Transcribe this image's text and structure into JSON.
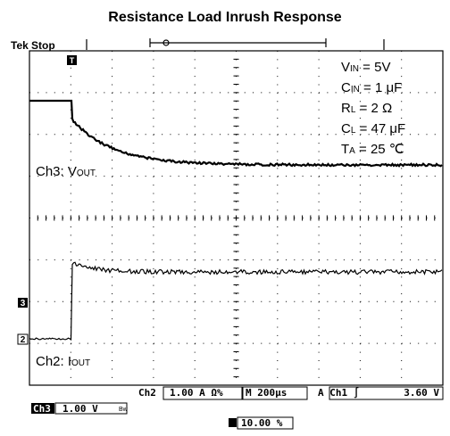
{
  "title": "Resistance Load Inrush Response",
  "status": {
    "brand": "Tek",
    "state": "Stop"
  },
  "conditions": [
    {
      "symbol": "V",
      "sub": "IN",
      "rest": " = 5V"
    },
    {
      "symbol": "C",
      "sub": "IN",
      "rest": " = 1 μF"
    },
    {
      "symbol": "R",
      "sub": "L",
      "rest": " = 2 Ω"
    },
    {
      "symbol": "C",
      "sub": "L",
      "rest": " = 47 μF"
    },
    {
      "symbol": "T",
      "sub": "A",
      "rest": " = 25 ℃"
    }
  ],
  "traces": [
    {
      "channel": "Ch3: ",
      "symbol": "V",
      "sub": "OUT"
    },
    {
      "channel": "Ch2: ",
      "symbol": "I",
      "sub": "OUT"
    }
  ],
  "markers": [
    "3",
    "2"
  ],
  "trigger_marker": "T",
  "readout": {
    "ch2": "Ch2",
    "ch2_scale": "1.00 A Ω%",
    "timebase": "M 200µs",
    "trigger": "A  Ch1 ∫",
    "trigger_level": "3.60 V",
    "ch3": "Ch3",
    "ch3_scale": "1.00 V",
    "bw": "Bw",
    "position": "10.00 %"
  }
}
